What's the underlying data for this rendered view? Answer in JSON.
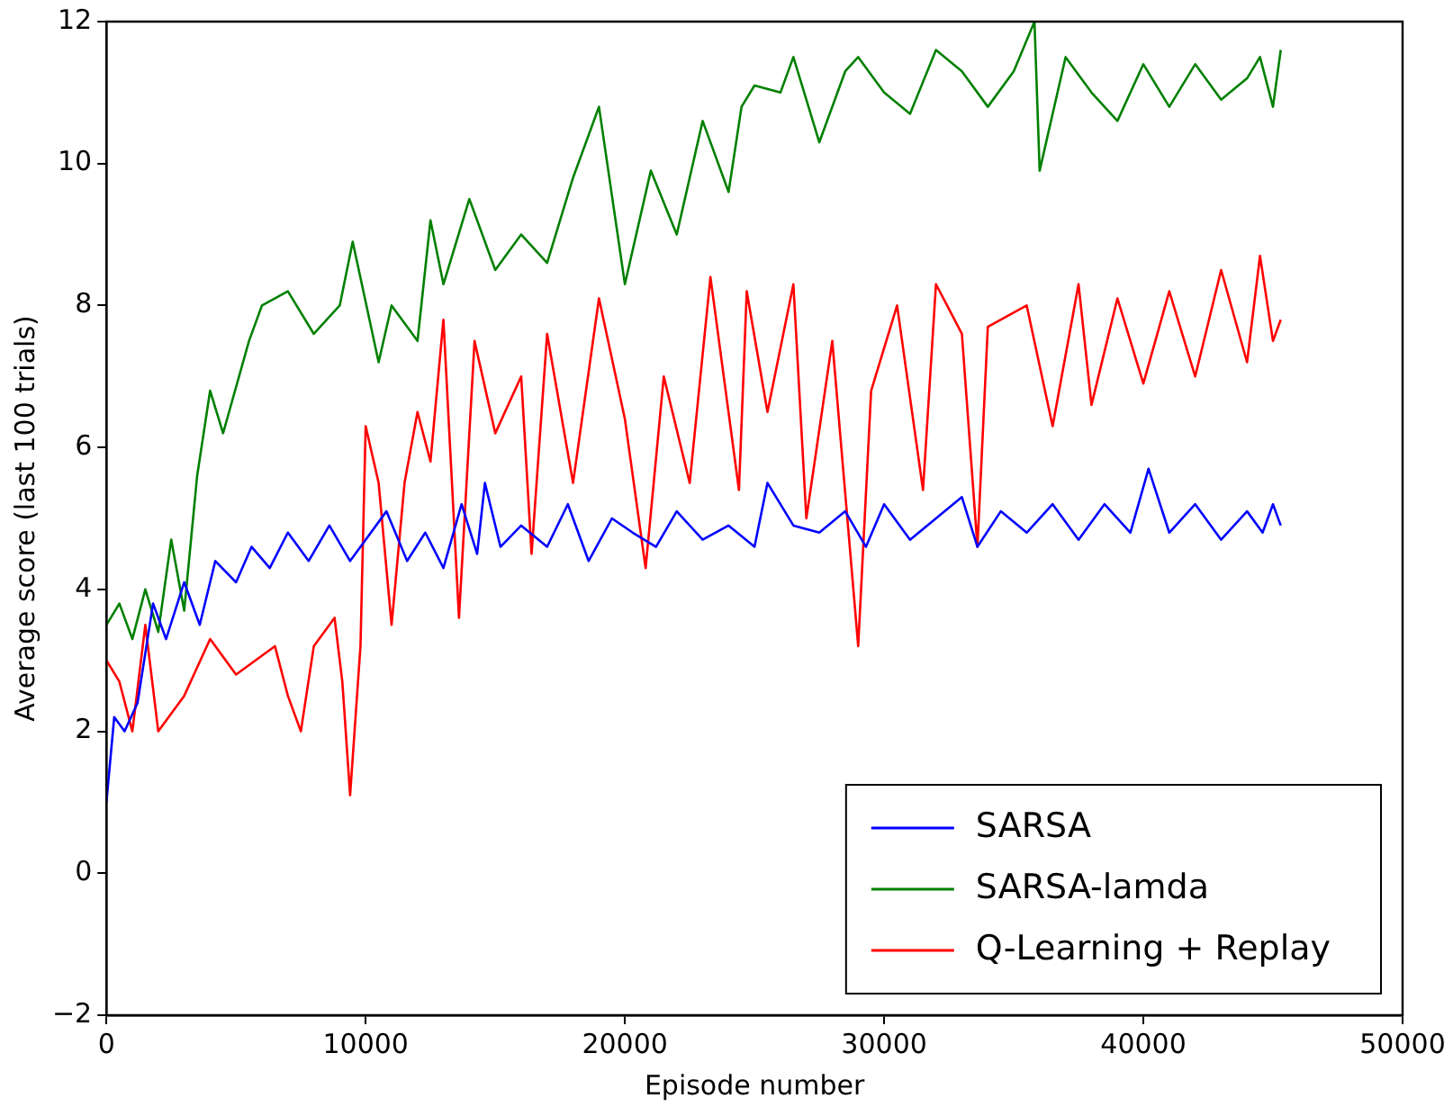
{
  "chart_data": {
    "type": "line",
    "xlabel": "Episode number",
    "ylabel": "Average score (last 100 trials)",
    "xlim": [
      0,
      50000
    ],
    "ylim": [
      -2,
      12
    ],
    "xticks": [
      0,
      10000,
      20000,
      30000,
      40000,
      50000
    ],
    "yticks": [
      -2,
      0,
      2,
      4,
      6,
      8,
      10,
      12
    ],
    "grid": false,
    "legend": "bottom right",
    "marker": "none",
    "line_style": "solid",
    "series": [
      {
        "name": "SARSA",
        "color": "#0000ff",
        "x": [
          0,
          300,
          700,
          1200,
          1800,
          2300,
          3000,
          3600,
          4200,
          5000,
          5600,
          6300,
          7000,
          7800,
          8600,
          9400,
          10000,
          10800,
          11600,
          12300,
          13000,
          13700,
          14300,
          14600,
          15200,
          16000,
          17000,
          17800,
          18600,
          19500,
          20300,
          21200,
          22000,
          23000,
          24000,
          25000,
          25500,
          26500,
          27500,
          28500,
          29300,
          30000,
          31000,
          32000,
          33000,
          33600,
          34500,
          35500,
          36500,
          37500,
          38500,
          39500,
          40200,
          41000,
          42000,
          43000,
          44000,
          44600,
          45000,
          45300
        ],
        "values": [
          1,
          2.2,
          2,
          2.4,
          3.8,
          3.3,
          4.1,
          3.5,
          4.4,
          4.1,
          4.6,
          4.3,
          4.8,
          4.4,
          4.9,
          4.4,
          4.7,
          5.1,
          4.4,
          4.8,
          4.3,
          5.2,
          4.5,
          5.5,
          4.6,
          4.9,
          4.6,
          5.2,
          4.4,
          5,
          4.8,
          4.6,
          5.1,
          4.7,
          4.9,
          4.6,
          5.5,
          4.9,
          4.8,
          5.1,
          4.6,
          5.2,
          4.7,
          5,
          5.3,
          4.6,
          5.1,
          4.8,
          5.2,
          4.7,
          5.2,
          4.8,
          5.7,
          4.8,
          5.2,
          4.7,
          5.1,
          4.8,
          5.2,
          4.9
        ]
      },
      {
        "name": "SARSA-lamda",
        "color": "#008000",
        "x": [
          0,
          500,
          1000,
          1500,
          2000,
          2500,
          3000,
          3500,
          4000,
          4500,
          5500,
          6000,
          7000,
          8000,
          9000,
          9500,
          10500,
          11000,
          12000,
          12500,
          13000,
          14000,
          15000,
          16000,
          17000,
          18000,
          19000,
          20000,
          21000,
          22000,
          23000,
          24000,
          24500,
          25000,
          26000,
          26500,
          27500,
          28500,
          29000,
          30000,
          31000,
          32000,
          33000,
          34000,
          35000,
          35800,
          36000,
          37000,
          38000,
          39000,
          40000,
          41000,
          42000,
          43000,
          44000,
          44500,
          45000,
          45300
        ],
        "values": [
          3.5,
          3.8,
          3.3,
          4,
          3.4,
          4.7,
          3.7,
          5.6,
          6.8,
          6.2,
          7.5,
          8,
          8.2,
          7.6,
          8,
          8.9,
          7.2,
          8,
          7.5,
          9.2,
          8.3,
          9.5,
          8.5,
          9,
          8.6,
          9.8,
          10.8,
          8.3,
          9.9,
          9,
          10.6,
          9.6,
          10.8,
          11.1,
          11,
          11.5,
          10.3,
          11.3,
          11.5,
          11,
          10.7,
          11.6,
          11.3,
          10.8,
          11.3,
          12,
          9.9,
          11.5,
          11,
          10.6,
          11.4,
          10.8,
          11.4,
          10.9,
          11.2,
          11.5,
          10.8,
          11.6
        ]
      },
      {
        "name": "Q-Learning + Replay",
        "color": "#ff0000",
        "x": [
          0,
          500,
          1000,
          1500,
          2000,
          3000,
          4000,
          5000,
          6500,
          7000,
          7500,
          8000,
          8800,
          9100,
          9400,
          9800,
          10000,
          10500,
          11000,
          11500,
          12000,
          12500,
          13000,
          13600,
          14200,
          15000,
          16000,
          16400,
          17000,
          18000,
          19000,
          20000,
          20800,
          21500,
          22500,
          23300,
          24400,
          24700,
          25500,
          26500,
          27000,
          28000,
          29000,
          29500,
          30500,
          31500,
          32000,
          33000,
          33600,
          34000,
          35500,
          36500,
          37500,
          38000,
          39000,
          40000,
          41000,
          42000,
          43000,
          44000,
          44500,
          45000,
          45300
        ],
        "values": [
          3,
          2.7,
          2,
          3.5,
          2,
          2.5,
          3.3,
          2.8,
          3.2,
          2.5,
          2,
          3.2,
          3.6,
          2.7,
          1.1,
          3.2,
          6.3,
          5.5,
          3.5,
          5.5,
          6.5,
          5.8,
          7.8,
          3.6,
          7.5,
          6.2,
          7,
          4.5,
          7.6,
          5.5,
          8.1,
          6.4,
          4.3,
          7,
          5.5,
          8.4,
          5.4,
          8.2,
          6.5,
          8.3,
          5,
          7.5,
          3.2,
          6.8,
          8,
          5.4,
          8.3,
          7.6,
          4.6,
          7.7,
          8,
          6.3,
          8.3,
          6.6,
          8.1,
          6.9,
          8.2,
          7,
          8.5,
          7.2,
          8.7,
          7.5,
          7.8
        ]
      }
    ]
  }
}
